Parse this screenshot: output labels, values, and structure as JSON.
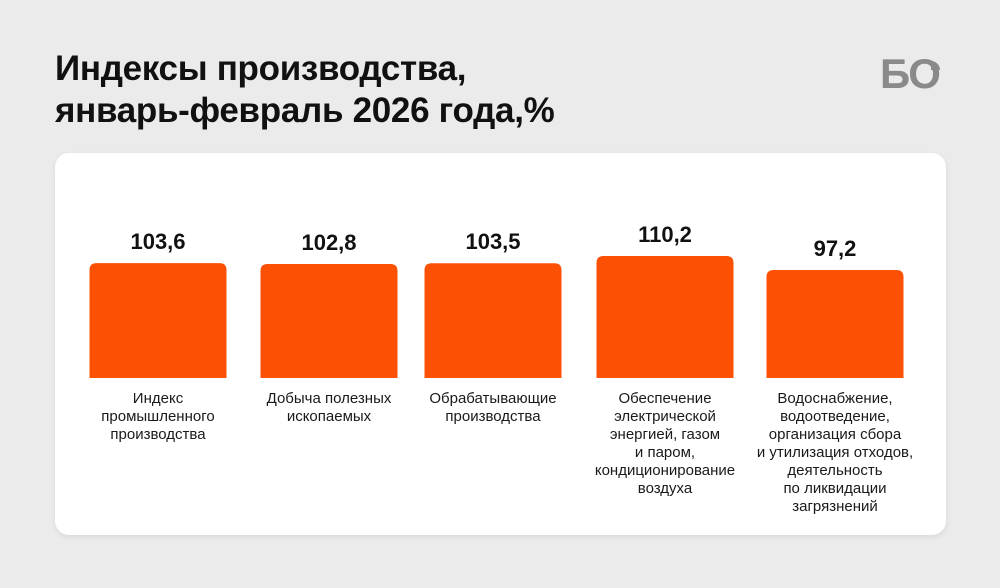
{
  "title": {
    "line1": "Индексы производства,",
    "line2": "январь-февраль 2026 года,%"
  },
  "logo": {
    "text": "БО",
    "icon": "clock-icon"
  },
  "colors": {
    "bar": "#fc5005",
    "background": "#ebebeb",
    "card": "#ffffff",
    "text": "#111111",
    "logo": "#8a8a8a"
  },
  "chart_data": {
    "type": "bar",
    "title": "Индексы производства, январь-февраль 2026 года,%",
    "categories": [
      "Индекс промышленного производства",
      "Добыча полезных ископаемых",
      "Обрабатывающие производства",
      "Обеспечение электрической энергией, газом и паром, кондиционирование воздуха",
      "Водоснабжение, водоотведение, организация сбора и утилизация отходов, деятельность по ликвидации загрязнений"
    ],
    "category_lines": [
      [
        "Индекс",
        "промышленного",
        "производства"
      ],
      [
        "Добыча полезных",
        "ископаемых"
      ],
      [
        "Обрабатывающие",
        "производства"
      ],
      [
        "Обеспечение",
        "электрической",
        "энергией, газом",
        "и паром,",
        "кондиционирование",
        "воздуха"
      ],
      [
        "Водоснабжение,",
        "водоотведение,",
        "организация сбора",
        "и утилизация отходов,",
        "деятельность",
        "по ликвидации",
        "загрязнений"
      ]
    ],
    "values": [
      103.6,
      102.8,
      103.5,
      110.2,
      97.2
    ],
    "value_labels": [
      "103,6",
      "102,8",
      "103,5",
      "110,2",
      "97,2"
    ],
    "xlabel": "",
    "ylabel": "",
    "grid": false,
    "legend": "none"
  }
}
